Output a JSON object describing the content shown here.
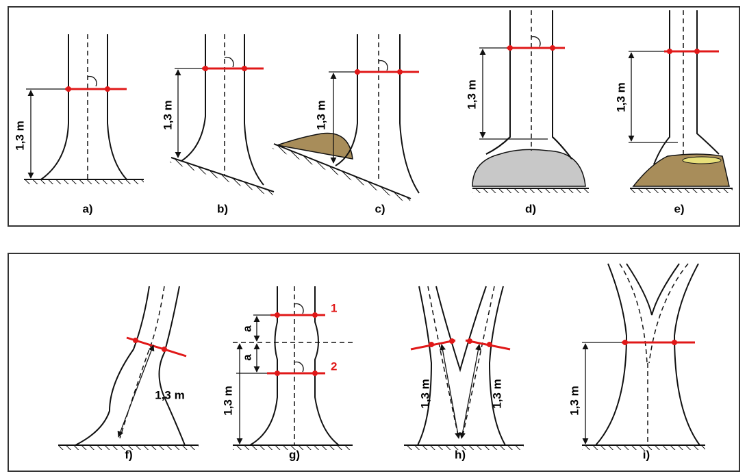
{
  "panels": [
    {
      "label": "a)",
      "height_label": "1,3 m"
    },
    {
      "label": "b)",
      "height_label": "1,3 m"
    },
    {
      "label": "c)",
      "height_label": "1,3 m"
    },
    {
      "label": "d)",
      "height_label": "1,3 m"
    },
    {
      "label": "e)",
      "height_label": "1,3 m"
    },
    {
      "label": "f)",
      "height_label": "1,3 m"
    },
    {
      "label": "g)",
      "height_label": "1,3 m",
      "offset_labels": [
        "a",
        "a"
      ],
      "marks": [
        "1",
        "2"
      ]
    },
    {
      "label": "h)",
      "height_labels": [
        "1,3 m",
        "1,3 m"
      ]
    },
    {
      "label": "i)",
      "height_label": "1,3 m"
    }
  ]
}
